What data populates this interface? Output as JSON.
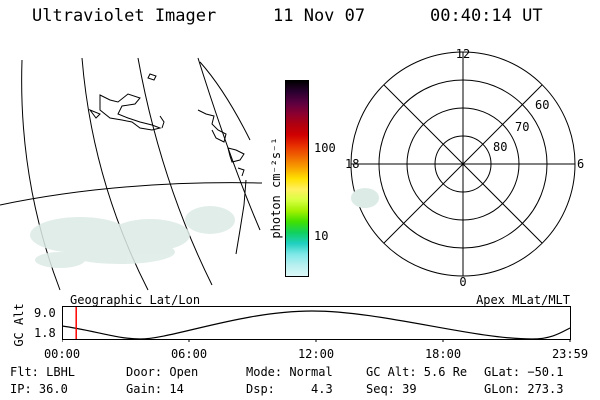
{
  "header": {
    "title": "Ultraviolet Imager",
    "date": "11 Nov 07",
    "time": "00:40:14 UT"
  },
  "colorbar": {
    "unit_label": "photon cm⁻²s⁻¹",
    "ticks": [
      "100",
      "10"
    ],
    "colors": [
      "#000000",
      "#2a0030",
      "#5a0040",
      "#8a0030",
      "#b00010",
      "#d00000",
      "#e83000",
      "#f06800",
      "#f8a000",
      "#ffe000",
      "#fff060",
      "#d8ff40",
      "#a0f000",
      "#40e000",
      "#10d060",
      "#20d0c0",
      "#80e8e8",
      "#b8f0f0",
      "#dff8f8"
    ]
  },
  "polar_plot": {
    "mlt_labels": [
      "12",
      "18",
      "6",
      "0"
    ],
    "lat_labels": [
      "60",
      "70",
      "80"
    ]
  },
  "timeline": {
    "left_title": "Geographic Lat/Lon",
    "right_title": "Apex MLat/MLT",
    "y_axis_label": "GC Alt",
    "y_ticks": [
      "9.0",
      "1.8"
    ],
    "x_ticks": [
      "00:00",
      "06:00",
      "12:00",
      "18:00",
      "23:59"
    ],
    "marker_color": "#ff0000"
  },
  "status": {
    "flt": "Flt: LBHL",
    "ip": "IP: 36.0",
    "door": "Door: Open",
    "gain": "Gain: 14",
    "mode": "Mode: Normal",
    "dsp": "Dsp:     4.3",
    "gc_alt": "GC Alt: 5.6 Re",
    "seq": "Seq: 39",
    "glat": "GLat: −50.1",
    "glon": "GLon: 273.3"
  }
}
